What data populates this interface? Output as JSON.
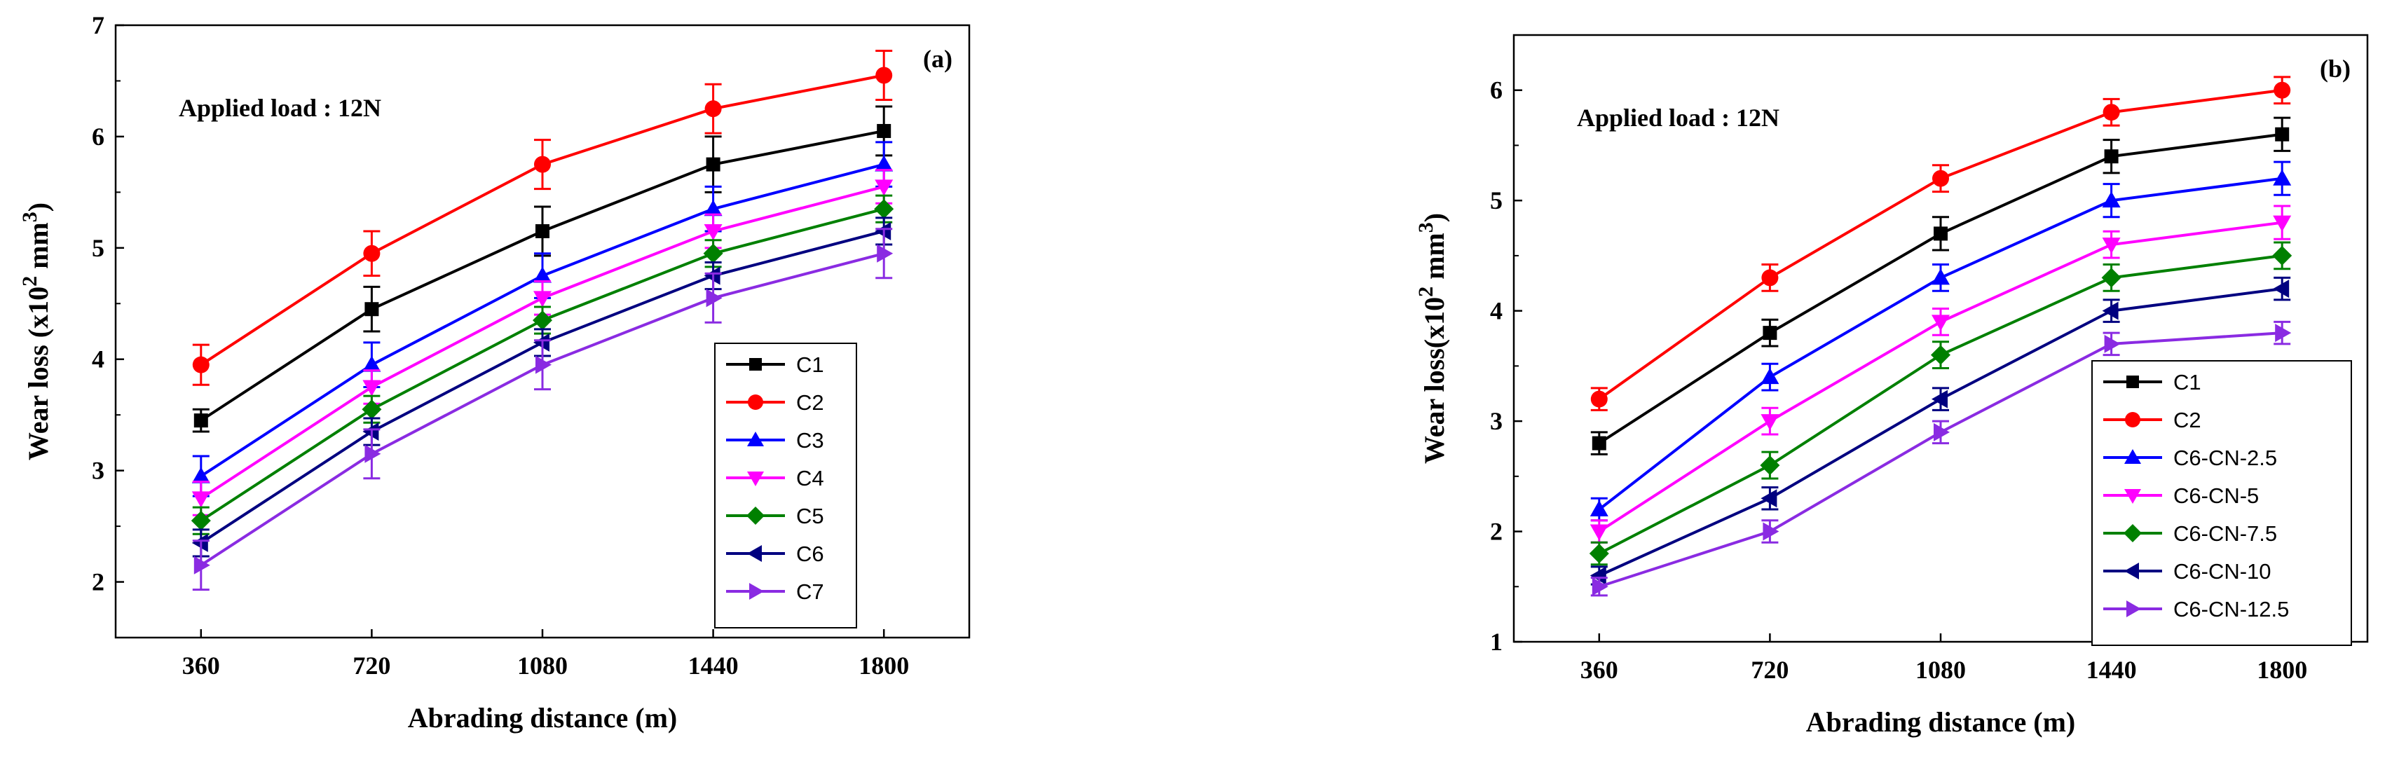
{
  "chart_data": [
    {
      "type": "line",
      "panel_label": "(a)",
      "annotation": "Applied load : 12N",
      "xlabel": "Abrading distance (m)",
      "ylabel": "Wear loss (x10² mm³)",
      "ylabel_parts": {
        "main": "Wear loss (x10",
        "exp1": "2",
        "mid": " mm",
        "exp2": "3",
        "end": ")"
      },
      "categories": [
        "360",
        "720",
        "1080",
        "1440",
        "1800"
      ],
      "ylim": [
        1.5,
        7
      ],
      "yticks": [
        "2",
        "3",
        "4",
        "5",
        "6",
        "7"
      ],
      "legend_position": "center-right",
      "series": [
        {
          "name": "C1",
          "color": "#000000",
          "marker": "square",
          "values": [
            3.45,
            4.45,
            5.15,
            5.75,
            6.05
          ],
          "errors": [
            0.1,
            0.2,
            0.22,
            0.25,
            0.22
          ]
        },
        {
          "name": "C2",
          "color": "#ff0000",
          "marker": "circle",
          "values": [
            3.95,
            4.95,
            5.75,
            6.25,
            6.55
          ],
          "errors": [
            0.18,
            0.2,
            0.22,
            0.22,
            0.22
          ]
        },
        {
          "name": "C3",
          "color": "#0000ff",
          "marker": "triangle-up",
          "values": [
            2.95,
            3.95,
            4.75,
            5.35,
            5.75
          ],
          "errors": [
            0.18,
            0.2,
            0.2,
            0.2,
            0.2
          ]
        },
        {
          "name": "C4",
          "color": "#ff00ff",
          "marker": "triangle-down",
          "values": [
            2.75,
            3.75,
            4.55,
            5.15,
            5.55
          ],
          "errors": [
            0.15,
            0.15,
            0.15,
            0.15,
            0.15
          ]
        },
        {
          "name": "C5",
          "color": "#008000",
          "marker": "diamond",
          "values": [
            2.55,
            3.55,
            4.35,
            4.95,
            5.35
          ],
          "errors": [
            0.12,
            0.12,
            0.12,
            0.12,
            0.12
          ]
        },
        {
          "name": "C6",
          "color": "#000080",
          "marker": "triangle-left",
          "values": [
            2.35,
            3.35,
            4.15,
            4.75,
            5.15
          ],
          "errors": [
            0.12,
            0.12,
            0.12,
            0.12,
            0.12
          ]
        },
        {
          "name": "C7",
          "color": "#8a2be2",
          "marker": "triangle-right",
          "values": [
            2.15,
            3.15,
            3.95,
            4.55,
            4.95
          ],
          "errors": [
            0.22,
            0.22,
            0.22,
            0.22,
            0.22
          ]
        }
      ]
    },
    {
      "type": "line",
      "panel_label": "(b)",
      "annotation": "Applied load : 12N",
      "xlabel": "Abrading distance (m)",
      "ylabel": "Wear loss(x10² mm³)",
      "ylabel_parts": {
        "main": "Wear loss(x10",
        "exp1": "2",
        "mid": " mm",
        "exp2": "3",
        "end": ")"
      },
      "categories": [
        "360",
        "720",
        "1080",
        "1440",
        "1800"
      ],
      "ylim": [
        1,
        6.5
      ],
      "yticks": [
        "1",
        "2",
        "3",
        "4",
        "5",
        "6"
      ],
      "legend_position": "bottom-right",
      "series": [
        {
          "name": "C1",
          "color": "#000000",
          "marker": "square",
          "values": [
            2.8,
            3.8,
            4.7,
            5.4,
            5.6
          ],
          "errors": [
            0.1,
            0.12,
            0.15,
            0.15,
            0.15
          ]
        },
        {
          "name": "C2",
          "color": "#ff0000",
          "marker": "circle",
          "values": [
            3.2,
            4.3,
            5.2,
            5.8,
            6.0
          ],
          "errors": [
            0.1,
            0.12,
            0.12,
            0.12,
            0.12
          ]
        },
        {
          "name": "C6-CN-2.5",
          "color": "#0000ff",
          "marker": "triangle-up",
          "values": [
            2.2,
            3.4,
            4.3,
            5.0,
            5.2
          ],
          "errors": [
            0.1,
            0.12,
            0.12,
            0.15,
            0.15
          ]
        },
        {
          "name": "C6-CN-5",
          "color": "#ff00ff",
          "marker": "triangle-down",
          "values": [
            2.0,
            3.0,
            3.9,
            4.6,
            4.8
          ],
          "errors": [
            0.1,
            0.12,
            0.12,
            0.12,
            0.15
          ]
        },
        {
          "name": "C6-CN-7.5",
          "color": "#008000",
          "marker": "diamond",
          "values": [
            1.8,
            2.6,
            3.6,
            4.3,
            4.5
          ],
          "errors": [
            0.1,
            0.12,
            0.12,
            0.12,
            0.12
          ]
        },
        {
          "name": "C6-CN-10",
          "color": "#000080",
          "marker": "triangle-left",
          "values": [
            1.6,
            2.3,
            3.2,
            4.0,
            4.2
          ],
          "errors": [
            0.08,
            0.1,
            0.1,
            0.1,
            0.1
          ]
        },
        {
          "name": "C6-CN-12.5",
          "color": "#8a2be2",
          "marker": "triangle-right",
          "values": [
            1.5,
            2.0,
            2.9,
            3.7,
            3.8
          ],
          "errors": [
            0.08,
            0.1,
            0.1,
            0.1,
            0.1
          ]
        }
      ]
    }
  ]
}
